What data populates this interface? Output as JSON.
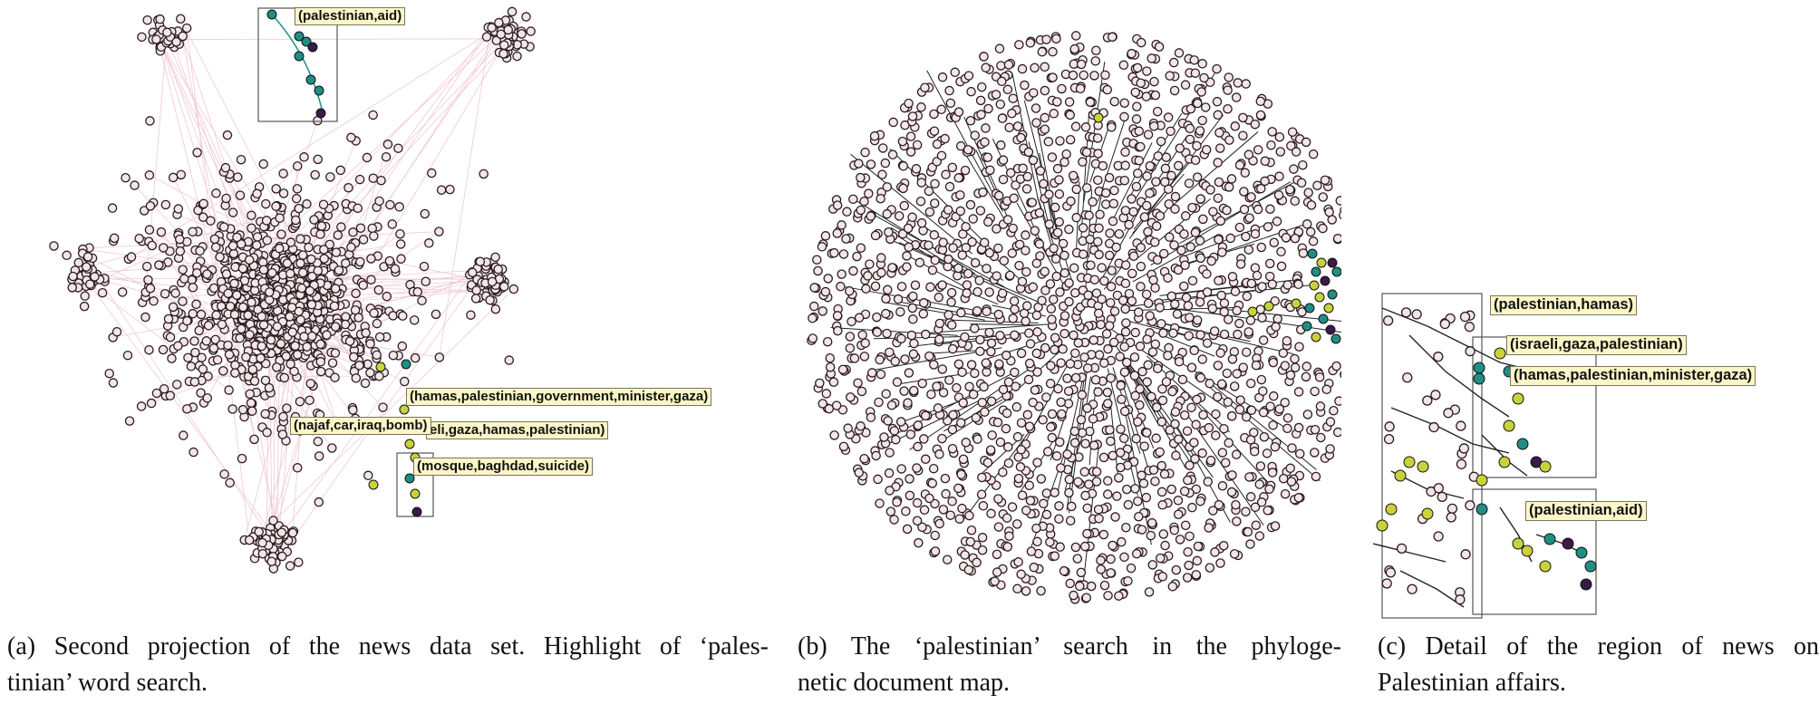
{
  "colors": {
    "node_fill": "#f3e6e9",
    "node_stroke": "#2a1b1f",
    "edge_pink": "#f0c9d2",
    "edge_dark": "#222222",
    "highlight_teal": "#1f8f84",
    "highlight_yellow": "#c9d23a",
    "highlight_purple": "#3a1a48",
    "label_bg": "#fbf6c8"
  },
  "panel_a": {
    "labels": [
      "(palestinian,aid)",
      "(hamas,palestinian,government,minister,gaza)",
      "(najaf,car,iraq,bomb)",
      "eli,gaza,hamas,palestinian)",
      "(mosque,baghdad,suicide)"
    ],
    "caption": {
      "line1": "(a)  Second projection of the news data set.  Highlight of ‘pales-",
      "line2": "tinian’ word search."
    }
  },
  "panel_b": {
    "caption": {
      "line1": "(b)  The ‘palestinian’ search in the phyloge-",
      "line2": "netic document map."
    }
  },
  "panel_c": {
    "labels": [
      "(palestinian,hamas)",
      "(israeli,gaza,palestinian)",
      "(hamas,palestinian,minister,gaza)",
      "(palestinian,aid)"
    ],
    "caption": {
      "line1": "(c)  Detail of the region of news on",
      "line2": "Palestinian affairs."
    }
  }
}
